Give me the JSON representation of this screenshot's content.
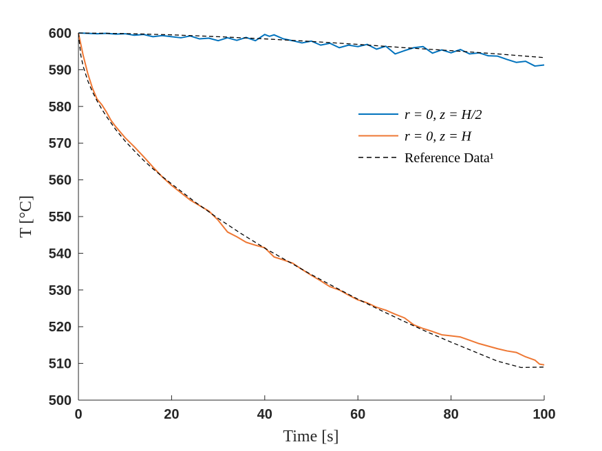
{
  "chart_data": {
    "type": "line",
    "xlabel": "Time [s]",
    "ylabel": "T [°C]",
    "xlim": [
      0,
      100
    ],
    "ylim": [
      500,
      600
    ],
    "xticks": [
      "0",
      "20",
      "40",
      "60",
      "80",
      "100"
    ],
    "yticks": [
      "500",
      "510",
      "520",
      "530",
      "540",
      "550",
      "560",
      "570",
      "580",
      "590",
      "600"
    ],
    "grid": false,
    "legend_position": "upper-right",
    "series": [
      {
        "name": "r = 0,  z = H/2",
        "color": "#0072BD",
        "style": "solid",
        "x": [
          0,
          2,
          4,
          6,
          8,
          10,
          12,
          14,
          16,
          18,
          20,
          22,
          24,
          26,
          28,
          30,
          32,
          34,
          36,
          38,
          40,
          41,
          42,
          44,
          46,
          48,
          50,
          52,
          54,
          56,
          58,
          60,
          62,
          64,
          66,
          68,
          70,
          72,
          74,
          76,
          78,
          80,
          82,
          84,
          86,
          88,
          90,
          92,
          94,
          96,
          98,
          100
        ],
        "y": [
          600,
          599.9,
          599.8,
          599.9,
          599.7,
          599.8,
          599.4,
          599.6,
          599.0,
          599.3,
          599.0,
          598.7,
          599.2,
          598.4,
          598.6,
          597.9,
          598.7,
          598.0,
          598.8,
          597.9,
          599.6,
          599.1,
          599.5,
          598.4,
          597.9,
          597.3,
          597.8,
          596.7,
          597.2,
          596.0,
          596.7,
          596.3,
          596.9,
          595.6,
          596.4,
          594.3,
          595.2,
          596.0,
          596.3,
          594.5,
          595.4,
          594.6,
          595.5,
          594.3,
          594.6,
          593.8,
          593.7,
          592.8,
          592.0,
          592.3,
          591.0,
          591.3
        ]
      },
      {
        "name": "r = 0,  z = H",
        "color": "#EE7733",
        "style": "solid",
        "x": [
          0,
          1,
          2,
          3,
          4,
          5,
          6,
          7,
          8,
          9,
          10,
          12,
          14,
          16,
          18,
          20,
          22,
          24,
          26,
          28,
          30,
          32,
          34,
          36,
          38,
          40,
          42,
          44,
          46,
          48,
          50,
          52,
          54,
          56,
          58,
          60,
          62,
          64,
          66,
          68,
          70,
          72,
          74,
          76,
          78,
          80,
          82,
          84,
          86,
          88,
          90,
          92,
          94,
          96,
          98,
          99,
          100
        ],
        "y": [
          600,
          594.0,
          589.0,
          585.0,
          582.0,
          580.5,
          578.5,
          576.2,
          574.5,
          573.0,
          571.5,
          569.0,
          566.3,
          563.5,
          560.8,
          558.5,
          556.5,
          554.5,
          553.0,
          551.5,
          549.0,
          545.8,
          544.5,
          543.0,
          542.2,
          541.5,
          539.0,
          538.2,
          537.3,
          535.6,
          534.0,
          532.5,
          530.9,
          530.0,
          528.6,
          527.3,
          526.5,
          525.3,
          524.5,
          523.4,
          522.4,
          520.5,
          519.5,
          518.7,
          517.8,
          517.5,
          517.2,
          516.3,
          515.4,
          514.7,
          514.0,
          513.4,
          513.0,
          511.8,
          510.9,
          509.8,
          509.6
        ]
      },
      {
        "name": "Reference Data¹",
        "color": "#000000",
        "style": "dashed",
        "x": [
          0,
          0.5,
          1,
          2,
          3,
          4,
          5,
          6,
          8,
          10,
          12,
          14,
          16,
          18,
          20,
          25,
          30,
          35,
          40,
          45,
          50,
          55,
          60,
          65,
          70,
          75,
          80,
          85,
          90,
          95,
          100
        ],
        "y": [
          600,
          594.0,
          591.0,
          587.0,
          584.0,
          581.5,
          579.3,
          577.3,
          573.7,
          570.6,
          567.9,
          565.3,
          563.0,
          560.9,
          558.9,
          554.0,
          549.5,
          545.3,
          541.4,
          537.8,
          534.2,
          530.8,
          527.5,
          524.4,
          521.4,
          518.5,
          515.8,
          513.2,
          510.6,
          508.9,
          509.0
        ]
      },
      {
        "name": "Reference Data¹",
        "color": "#000000",
        "style": "dashed",
        "x": [
          0,
          10,
          20,
          30,
          40,
          50,
          60,
          70,
          80,
          90,
          100
        ],
        "y": [
          600,
          599.85,
          599.5,
          599.0,
          598.4,
          597.7,
          596.9,
          596.0,
          595.2,
          594.3,
          593.3
        ]
      }
    ]
  }
}
